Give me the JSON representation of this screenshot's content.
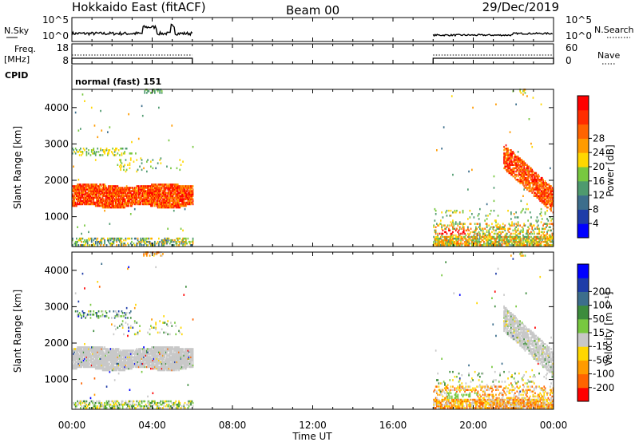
{
  "header": {
    "radar": "Hokkaido East (fitACF)",
    "beam": "Beam 00",
    "date": "29/Dec/2019"
  },
  "top_panels": {
    "nsky_label": "N.Sky",
    "nsearch_label": "N.Search",
    "freq_label": "Freq.",
    "freq_unit": "[MHz]",
    "nave_label": "Nave",
    "cpid_label": "CPID",
    "cpid_value": "normal (fast) 151",
    "noise_ticks": [
      "10^5",
      "10^0"
    ],
    "noise_right_ticks": [
      "10^5",
      "10^0"
    ],
    "freq_ticks": [
      "18",
      "8"
    ],
    "nave_ticks": [
      "60",
      "0"
    ]
  },
  "colors": {
    "power": [
      "#0000ff",
      "#1e3ca8",
      "#3c6e8c",
      "#4e9a6e",
      "#78c840",
      "#ffd700",
      "#ff9b00",
      "#ff6400",
      "#ff2d00",
      "#ff0000"
    ],
    "velocity": [
      "#ff0000",
      "#ff6400",
      "#ff9b00",
      "#ffd700",
      "#c8c8c8",
      "#78c840",
      "#3c8c3c",
      "#3c6e8c",
      "#1e3ca8",
      "#0000ff"
    ]
  },
  "chart_data": [
    {
      "type": "heatmap",
      "name": "power-panel",
      "ylabel": "Slant Range [km]",
      "xlim": [
        0,
        24
      ],
      "ylim": [
        180,
        4500
      ],
      "yticks": [
        "1000",
        "2000",
        "3000",
        "4000"
      ],
      "colorbar_label": "Power [dB]",
      "colorbar_ticks": [
        "4",
        "8",
        "12",
        "16",
        "20",
        "24",
        "28"
      ]
    },
    {
      "type": "heatmap",
      "name": "velocity-panel",
      "ylabel": "Slant Range [km]",
      "xlim": [
        0,
        24
      ],
      "ylim": [
        180,
        4500
      ],
      "yticks": [
        "1000",
        "2000",
        "3000",
        "4000"
      ],
      "colorbar_label": "Velocity [m s⁻¹]",
      "colorbar_ticks": [
        "-200",
        "-100",
        "-50",
        "-15",
        "15",
        "50",
        "100",
        "200"
      ]
    }
  ],
  "x_axis": {
    "ticks": [
      "00:00",
      "04:00",
      "08:00",
      "12:00",
      "16:00",
      "20:00",
      "00:00"
    ],
    "label": "Time UT"
  }
}
